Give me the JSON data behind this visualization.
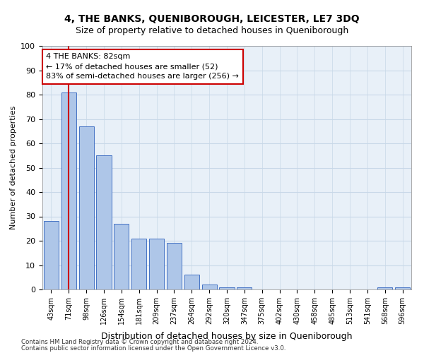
{
  "title1": "4, THE BANKS, QUENIBOROUGH, LEICESTER, LE7 3DQ",
  "title2": "Size of property relative to detached houses in Queniborough",
  "xlabel": "Distribution of detached houses by size in Queniborough",
  "ylabel": "Number of detached properties",
  "categories": [
    "43sqm",
    "71sqm",
    "98sqm",
    "126sqm",
    "154sqm",
    "181sqm",
    "209sqm",
    "237sqm",
    "264sqm",
    "292sqm",
    "320sqm",
    "347sqm",
    "375sqm",
    "402sqm",
    "430sqm",
    "458sqm",
    "485sqm",
    "513sqm",
    "541sqm",
    "568sqm",
    "596sqm"
  ],
  "values": [
    28,
    81,
    67,
    55,
    27,
    21,
    21,
    19,
    6,
    2,
    1,
    1,
    0,
    0,
    0,
    0,
    0,
    0,
    0,
    1,
    1
  ],
  "bar_color": "#aec6e8",
  "bar_edge_color": "#4472c4",
  "vline_x": 1,
  "vline_color": "#cc0000",
  "annotation_text": "4 THE BANKS: 82sqm\n← 17% of detached houses are smaller (52)\n83% of semi-detached houses are larger (256) →",
  "annotation_box_color": "#ffffff",
  "annotation_box_edge_color": "#cc0000",
  "ylim": [
    0,
    100
  ],
  "grid_color": "#c8d8e8",
  "bg_color": "#e8f0f8",
  "footer1": "Contains HM Land Registry data © Crown copyright and database right 2024.",
  "footer2": "Contains public sector information licensed under the Open Government Licence v3.0."
}
